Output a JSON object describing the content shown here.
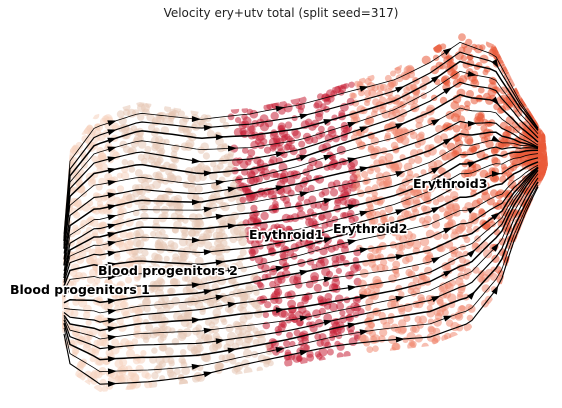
{
  "chart_data": {
    "type": "scatter",
    "title": "Velocity ery+utv total (split seed=317)",
    "xlabel": "",
    "ylabel": "",
    "grid": false,
    "axes_visible": false,
    "overlay": "velocity-streamlines",
    "streamline_color": "#000000",
    "clusters": [
      {
        "name": "Blood progenitors 1",
        "color": "#f6d2bd",
        "x": 0.05,
        "y": 0.42
      },
      {
        "name": "Blood progenitors 2",
        "color": "#e6c6b4",
        "x": 0.25,
        "y": 0.47
      },
      {
        "name": "Erythroid1",
        "color": "#c8243a",
        "x": 0.5,
        "y": 0.58
      },
      {
        "name": "Erythroid2",
        "color": "#f08a72",
        "x": 0.72,
        "y": 0.6
      },
      {
        "name": "Erythroid3",
        "color": "#ea5a38",
        "x": 0.9,
        "y": 0.75
      }
    ]
  }
}
